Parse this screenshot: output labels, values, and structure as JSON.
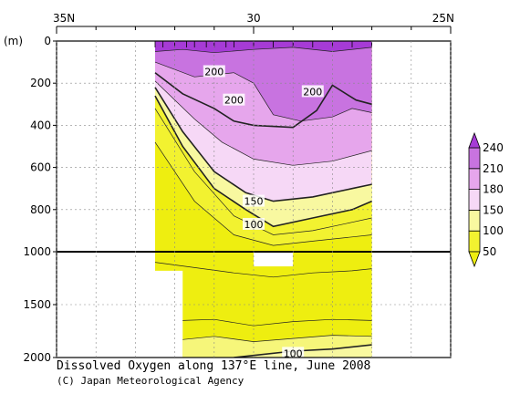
{
  "colors": {
    "band_50_100": "#F2F230",
    "band_100_150": "#F8F8A0",
    "band_150_180": "#F6D8F6",
    "band_180_210": "#E6A6EC",
    "band_210_240": "#C873E0",
    "band_240_plus": "#A63BD6",
    "below_50": "#EEEE10",
    "contour_line": "#222222"
  },
  "chart_data": {
    "type": "contour",
    "title": "Dissolved Oxygen along 137°E line, June 2008",
    "credit": "(C) Japan Meteorological Agency",
    "x_axis": {
      "range": [
        35,
        25
      ],
      "ticks": [
        35,
        30,
        25
      ],
      "tick_labels": [
        "35N",
        "30",
        "25N"
      ],
      "minor_step": 1
    },
    "y_axis": {
      "unit": "(m)",
      "range": [
        0,
        2000
      ],
      "upper_panel": [
        0,
        1000
      ],
      "lower_panel": [
        1000,
        2000
      ],
      "ticks": [
        0,
        200,
        400,
        600,
        800,
        1000,
        1500,
        2000
      ],
      "tick_labels": [
        "0",
        "200",
        "400",
        "600",
        "800",
        "1000",
        "1500",
        "2000"
      ]
    },
    "colorbar": {
      "levels": [
        50,
        100,
        150,
        180,
        210,
        240
      ],
      "labels": [
        "50",
        "100",
        "150",
        "180",
        "210",
        "240"
      ]
    },
    "data_extent_lat": [
      32.5,
      27.0
    ],
    "station_latitudes": [
      32.5,
      32.3,
      32.0,
      31.7,
      31.5,
      31.2,
      31.0,
      30.7,
      30.5,
      30.0,
      29.5,
      29.0,
      28.5,
      28.0,
      27.5,
      27.0
    ],
    "contour_labels": [
      {
        "text": "200",
        "lat": 31.0,
        "depth": 145
      },
      {
        "text": "200",
        "lat": 30.5,
        "depth": 280
      },
      {
        "text": "200",
        "lat": 28.5,
        "depth": 240
      },
      {
        "text": "150",
        "lat": 30.0,
        "depth": 760
      },
      {
        "text": "100",
        "lat": 30.0,
        "depth": 870
      },
      {
        "text": "100",
        "lat": 29.0,
        "depth": 1960
      }
    ],
    "missing_region": {
      "lat": [
        30.0,
        29.0
      ],
      "depth": [
        1000,
        1130
      ]
    },
    "levels_upper": [
      {
        "value": 240,
        "pts": [
          [
            32.5,
            50
          ],
          [
            31.8,
            40
          ],
          [
            31.0,
            55
          ],
          [
            30.0,
            40
          ],
          [
            29.0,
            30
          ],
          [
            28.0,
            50
          ],
          [
            27.0,
            30
          ]
        ]
      },
      {
        "value": 210,
        "pts": [
          [
            32.5,
            100
          ],
          [
            31.5,
            170
          ],
          [
            30.5,
            150
          ],
          [
            30.0,
            200
          ],
          [
            29.5,
            350
          ],
          [
            28.8,
            380
          ],
          [
            28.0,
            360
          ],
          [
            27.5,
            320
          ],
          [
            27.0,
            340
          ]
        ]
      },
      {
        "value": 200,
        "pts": [
          [
            32.5,
            150
          ],
          [
            31.8,
            250
          ],
          [
            31.0,
            320
          ],
          [
            30.5,
            380
          ],
          [
            30.0,
            400
          ],
          [
            29.0,
            410
          ],
          [
            28.4,
            330
          ],
          [
            28.0,
            210
          ],
          [
            27.4,
            280
          ],
          [
            27.0,
            300
          ]
        ]
      },
      {
        "value": 180,
        "pts": [
          [
            32.5,
            190
          ],
          [
            31.5,
            370
          ],
          [
            30.8,
            480
          ],
          [
            30.0,
            560
          ],
          [
            29.0,
            590
          ],
          [
            28.0,
            570
          ],
          [
            27.0,
            520
          ]
        ]
      },
      {
        "value": 150,
        "pts": [
          [
            32.5,
            220
          ],
          [
            31.8,
            430
          ],
          [
            31.0,
            620
          ],
          [
            30.2,
            720
          ],
          [
            29.5,
            760
          ],
          [
            28.5,
            740
          ],
          [
            27.5,
            700
          ],
          [
            27.0,
            680
          ]
        ]
      },
      {
        "value": 100,
        "pts": [
          [
            32.5,
            260
          ],
          [
            31.8,
            500
          ],
          [
            31.0,
            700
          ],
          [
            30.2,
            800
          ],
          [
            29.5,
            880
          ],
          [
            28.5,
            840
          ],
          [
            27.5,
            800
          ],
          [
            27.0,
            760
          ]
        ]
      },
      {
        "value": 80,
        "pts": [
          [
            32.5,
            320
          ],
          [
            31.5,
            620
          ],
          [
            30.5,
            830
          ],
          [
            29.5,
            920
          ],
          [
            28.5,
            900
          ],
          [
            27.5,
            860
          ],
          [
            27.0,
            840
          ]
        ]
      },
      {
        "value": 60,
        "pts": [
          [
            32.5,
            480
          ],
          [
            31.5,
            760
          ],
          [
            30.5,
            920
          ],
          [
            29.5,
            970
          ],
          [
            28.5,
            950
          ],
          [
            27.5,
            930
          ],
          [
            27.0,
            920
          ]
        ]
      }
    ],
    "levels_lower": [
      {
        "value": 70,
        "pts": [
          [
            32.5,
            1100
          ],
          [
            31.5,
            1150
          ],
          [
            30.5,
            1200
          ],
          [
            29.5,
            1240
          ],
          [
            28.5,
            1200
          ],
          [
            27.5,
            1180
          ],
          [
            27.0,
            1160
          ]
        ]
      },
      {
        "value": 80,
        "pts": [
          [
            31.8,
            1650
          ],
          [
            31.0,
            1640
          ],
          [
            30.0,
            1700
          ],
          [
            29.0,
            1660
          ],
          [
            28.0,
            1640
          ],
          [
            27.0,
            1650
          ]
        ]
      },
      {
        "value": 90,
        "pts": [
          [
            31.8,
            1830
          ],
          [
            31.0,
            1800
          ],
          [
            30.0,
            1850
          ],
          [
            29.0,
            1820
          ],
          [
            28.0,
            1790
          ],
          [
            27.0,
            1800
          ]
        ]
      },
      {
        "value": 100,
        "pts": [
          [
            30.5,
            2000
          ],
          [
            30.0,
            1980
          ],
          [
            29.0,
            1940
          ],
          [
            28.0,
            1920
          ],
          [
            27.0,
            1880
          ]
        ]
      }
    ]
  }
}
